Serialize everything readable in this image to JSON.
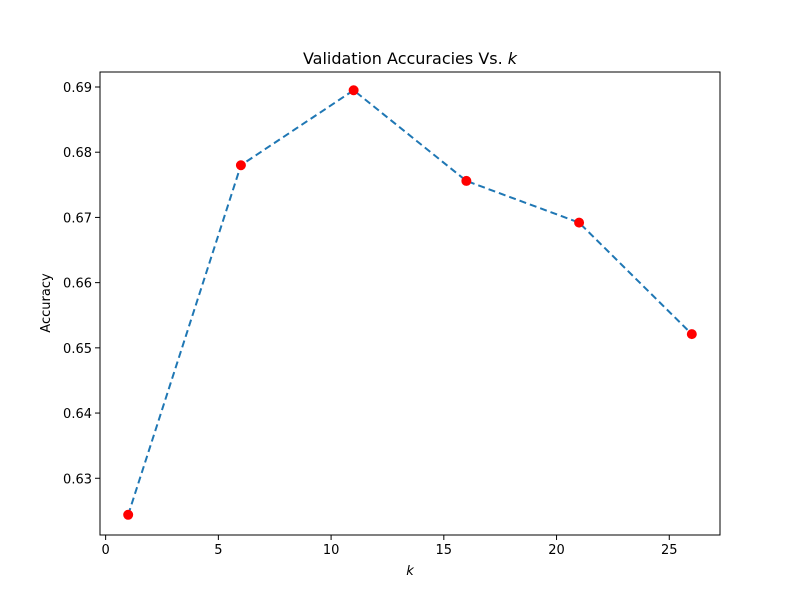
{
  "chart_data": {
    "type": "line",
    "title": {
      "prefix": "Validation Accuracies Vs. ",
      "italic": "k"
    },
    "xlabel": "k",
    "ylabel": "Accuracy",
    "xlim": [
      -0.25,
      27.25
    ],
    "ylim": [
      0.6213,
      0.6923
    ],
    "x_ticks": [
      0,
      5,
      10,
      15,
      20,
      25
    ],
    "x_tick_labels": [
      "0",
      "5",
      "10",
      "15",
      "20",
      "25"
    ],
    "y_ticks": [
      0.63,
      0.64,
      0.65,
      0.66,
      0.67,
      0.68,
      0.69
    ],
    "y_tick_labels": [
      "0.63",
      "0.64",
      "0.65",
      "0.66",
      "0.67",
      "0.68",
      "0.69"
    ],
    "grid": false,
    "legend": "none",
    "series": [
      {
        "x": [
          1,
          6,
          11,
          16,
          21,
          26
        ],
        "values": [
          0.6244,
          0.678,
          0.6895,
          0.6756,
          0.6692,
          0.6521
        ],
        "line_color": "#1f77b4",
        "line_style": "dashed",
        "marker_color": "#ff0000"
      }
    ]
  }
}
